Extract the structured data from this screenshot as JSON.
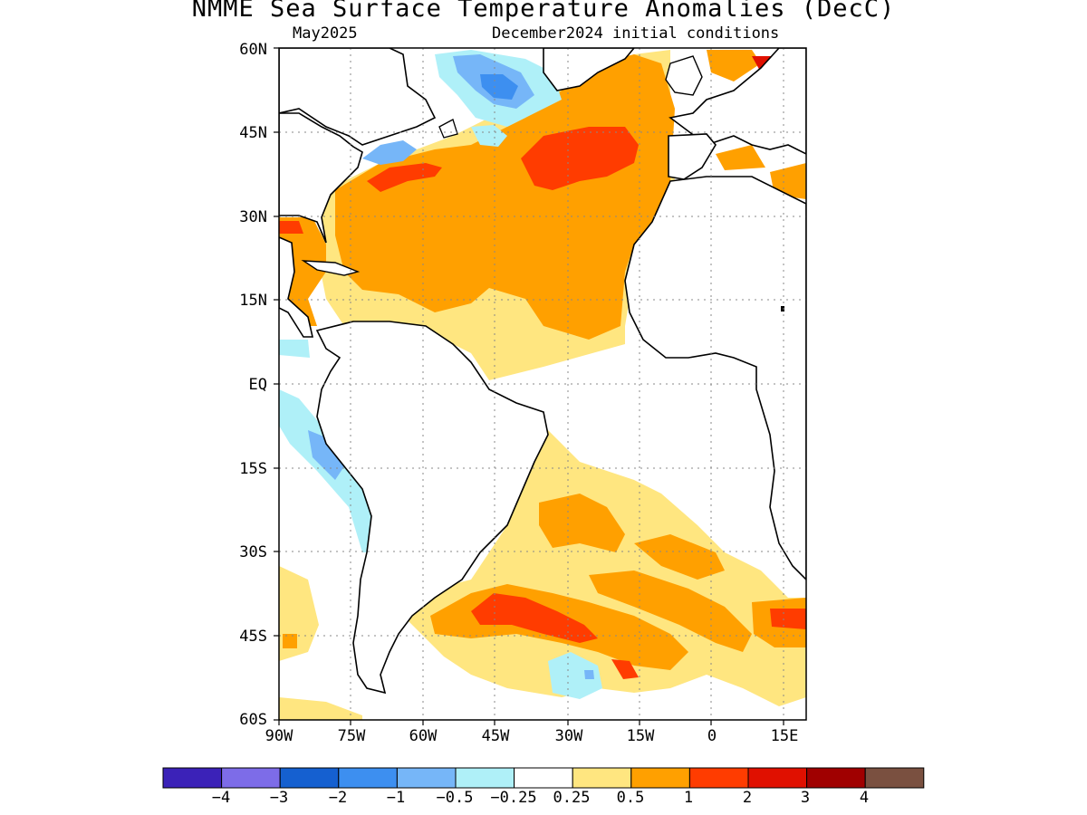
{
  "title": "NMME Sea Surface Temperature Anomalies (DecC)",
  "forecast_month": "May2025",
  "initial_conditions": "December2024 initial conditions",
  "lat_labels": [
    "60N",
    "45N",
    "30N",
    "15N",
    "EQ",
    "15S",
    "30S",
    "45S",
    "60S"
  ],
  "lon_labels": [
    "90W",
    "75W",
    "60W",
    "45W",
    "30W",
    "15W",
    "0",
    "15E"
  ],
  "colorbar": {
    "colors": [
      "#3b22b8",
      "#7d6ce8",
      "#1560d0",
      "#3d8ff0",
      "#76b6f8",
      "#aff0f8",
      "#ffffff",
      "#ffe680",
      "#ffa000",
      "#ff3c00",
      "#e01000",
      "#a00000",
      "#7a5040"
    ],
    "labels": [
      "−4",
      "−3",
      "−2",
      "−1",
      "−0.5",
      "−0.25",
      "0.25",
      "0.5",
      "1",
      "2",
      "3",
      "4"
    ]
  },
  "map": {
    "extent": {
      "lon": [
        -90,
        20
      ],
      "lat": [
        -60,
        60
      ]
    },
    "features": [
      "North Atlantic warm anomaly +0.5 to +1",
      "Mid-Atlantic anomaly +1 to +2",
      "South Atlantic +1 to +2 band near 40S",
      "Cool anomaly near Labrador Sea -1 to -2",
      "Cool anomaly off Peru coast -0.5 to -1"
    ]
  }
}
